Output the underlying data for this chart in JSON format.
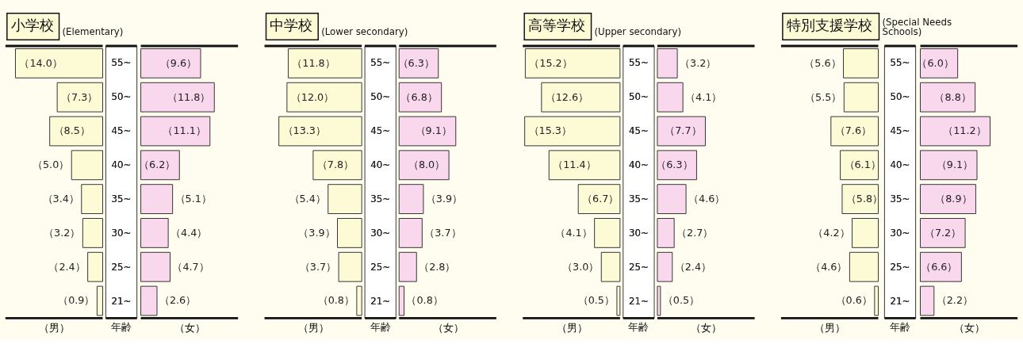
{
  "chart_data": [
    {
      "type": "bar",
      "orientation": "horizontal",
      "title": "小学校",
      "subtitle": "(Elementary)",
      "ylabel": "年齢",
      "categories": [
        "55~",
        "50~",
        "45~",
        "40~",
        "35~",
        "30~",
        "25~",
        "21~"
      ],
      "series": [
        {
          "name": "（男）",
          "color": "#fdfad6",
          "values": [
            14.0,
            7.3,
            8.5,
            5.0,
            3.4,
            3.2,
            2.4,
            0.9
          ],
          "value_labels": [
            "（14.0）",
            "（7.3）",
            "（8.5）",
            "（5.0）",
            "（3.4）",
            "（3.2）",
            "（2.4）",
            "（0.9）"
          ]
        }
      ]
    },
    {
      "type": "bar",
      "orientation": "horizontal",
      "tick_labels": false,
      "categories": [
        "55~",
        "50~",
        "45~",
        "40~",
        "35~",
        "30~",
        "25~",
        "21~"
      ],
      "series": [
        {
          "name": "（女）",
          "color": "#f9d8ee",
          "values": [
            9.6,
            11.8,
            11.1,
            6.2,
            5.1,
            4.4,
            4.7,
            2.6
          ],
          "value_labels": [
            "（9.6）",
            "（11.8）",
            "（11.1）",
            "（6.2）",
            "（5.1）",
            "（4.4）",
            "（4.7）",
            "（2.6）"
          ]
        }
      ]
    },
    {
      "type": "bar",
      "orientation": "horizontal",
      "title": "中学校",
      "subtitle": "(Lower secondary)",
      "ylabel": "年齢",
      "categories": [
        "55~",
        "50~",
        "45~",
        "40~",
        "35~",
        "30~",
        "25~",
        "21~"
      ],
      "series": [
        {
          "name": "（男）",
          "color": "#fdfad6",
          "values": [
            11.8,
            12.0,
            13.3,
            7.8,
            5.4,
            3.9,
            3.7,
            0.8
          ],
          "value_labels": [
            "（11.8）",
            "（12.0）",
            "（13.3）",
            "（7.8）",
            "（5.4）",
            "（3.9）",
            "（3.7）",
            "（0.8）"
          ]
        }
      ]
    },
    {
      "type": "bar",
      "orientation": "horizontal",
      "tick_labels": false,
      "categories": [
        "55~",
        "50~",
        "45~",
        "40~",
        "35~",
        "30~",
        "25~",
        "21~"
      ],
      "series": [
        {
          "name": "（女）",
          "color": "#f9d8ee",
          "values": [
            6.3,
            6.8,
            9.1,
            8.0,
            3.9,
            3.7,
            2.8,
            0.8
          ],
          "value_labels": [
            "（6.3）",
            "（6.8）",
            "（9.1）",
            "（8.0）",
            "（3.9）",
            "（3.7）",
            "（2.8）",
            "（0.8）"
          ]
        }
      ]
    },
    {
      "type": "bar",
      "orientation": "horizontal",
      "title": "高等学校",
      "subtitle": "(Upper secondary)",
      "ylabel": "年齢",
      "categories": [
        "55~",
        "50~",
        "45~",
        "40~",
        "35~",
        "30~",
        "25~",
        "21~"
      ],
      "series": [
        {
          "name": "（男）",
          "color": "#fdfad6",
          "values": [
            15.2,
            12.6,
            15.3,
            11.4,
            6.7,
            4.1,
            3.0,
            0.5
          ],
          "value_labels": [
            "（15.2）",
            "（12.6）",
            "（15.3）",
            "（11.4）",
            "（6.7）",
            "（4.1）",
            "（3.0）",
            "（0.5）"
          ]
        }
      ]
    },
    {
      "type": "bar",
      "orientation": "horizontal",
      "tick_labels": false,
      "categories": [
        "55~",
        "50~",
        "45~",
        "40~",
        "35~",
        "30~",
        "25~",
        "21~"
      ],
      "series": [
        {
          "name": "（女）",
          "color": "#f9d8ee",
          "values": [
            3.2,
            4.1,
            7.7,
            6.3,
            4.6,
            2.7,
            2.4,
            0.5
          ],
          "value_labels": [
            "（3.2）",
            "（4.1）",
            "（7.7）",
            "（6.3）",
            "（4.6）",
            "（2.7）",
            "（2.4）",
            "（0.5）"
          ]
        }
      ]
    },
    {
      "type": "bar",
      "orientation": "horizontal",
      "title": "特別支援学校",
      "subtitle": "(Special Needs\nSchools)",
      "ylabel": "年齢",
      "categories": [
        "55~",
        "50~",
        "45~",
        "40~",
        "35~",
        "30~",
        "25~",
        "21~"
      ],
      "series": [
        {
          "name": "（男）",
          "color": "#fdfad6",
          "values": [
            5.6,
            5.5,
            7.6,
            6.1,
            5.8,
            4.2,
            4.6,
            0.6
          ],
          "value_labels": [
            "（5.6）",
            "（5.5）",
            "（7.6）",
            "（6.1）",
            "（5.8）",
            "（4.2）",
            "（4.6）",
            "（0.6）"
          ]
        }
      ]
    },
    {
      "type": "bar",
      "orientation": "horizontal",
      "tick_labels": false,
      "categories": [
        "55~",
        "50~",
        "45~",
        "40~",
        "35~",
        "30~",
        "25~",
        "21~"
      ],
      "series": [
        {
          "name": "（女）",
          "color": "#f9d8ee",
          "values": [
            6.0,
            8.8,
            11.2,
            9.1,
            8.9,
            7.2,
            6.6,
            2.2
          ],
          "value_labels": [
            "（6.0）",
            "（8.8）",
            "（11.2）",
            "（9.1）",
            "（8.9）",
            "（7.2）",
            "（6.6）",
            "（2.2）"
          ]
        }
      ]
    }
  ]
}
